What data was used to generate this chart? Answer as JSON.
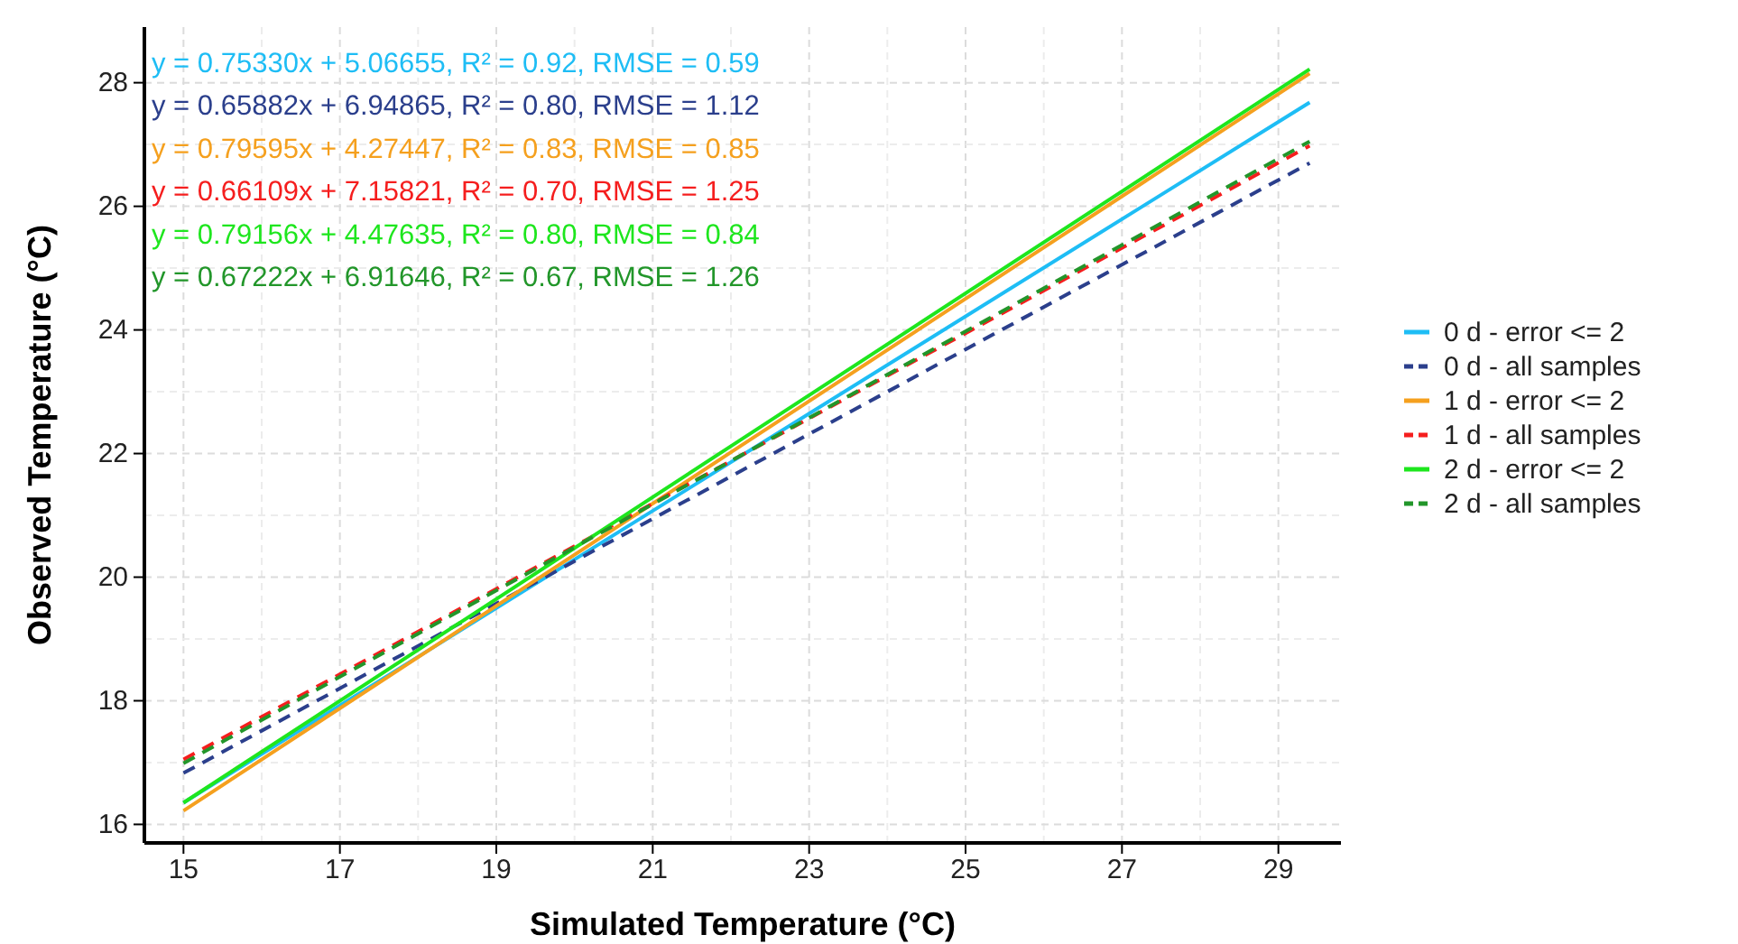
{
  "chart_data": {
    "type": "line",
    "xlabel": "Simulated Temperature (°C)",
    "ylabel": "Observed Temperature  (°C)",
    "xlim": [
      14.5,
      29.8
    ],
    "xticks": [
      15,
      17,
      19,
      21,
      23,
      25,
      27,
      29
    ],
    "ylim": [
      15.7,
      28.9
    ],
    "yticks": [
      16,
      18,
      20,
      22,
      24,
      26,
      28
    ],
    "grid": true,
    "legend": "right",
    "annotations": [
      "y = 0.75330x + 5.06655, R² = 0.92, RMSE = 0.59",
      "y = 0.65882x + 6.94865, R² = 0.80, RMSE = 1.12",
      "y = 0.79595x + 4.27447, R² = 0.83, RMSE = 0.85",
      "y = 0.66109x + 7.15821, R² = 0.70, RMSE = 1.25",
      "y = 0.79156x + 4.47635, R² = 0.80, RMSE = 0.84",
      "y = 0.67222x + 6.91646, R² = 0.67, RMSE = 1.26"
    ],
    "series": [
      {
        "name": "0 d - error <= 2",
        "color": "#1ebdf5",
        "line_style": "solid",
        "x": [
          15,
          22,
          29.4
        ],
        "values": [
          16.35,
          21.86,
          27.68
        ]
      },
      {
        "name": "0 d - all samples",
        "color": "#2b3f8c",
        "line_style": "dashed",
        "x": [
          15,
          22,
          29.4
        ],
        "values": [
          16.83,
          21.63,
          26.7
        ]
      },
      {
        "name": "1 d - error <= 2",
        "color": "#f5a01e",
        "line_style": "solid",
        "x": [
          15,
          22,
          29.4
        ],
        "values": [
          16.22,
          22.02,
          28.15
        ]
      },
      {
        "name": "1 d - all samples",
        "color": "#f51e1e",
        "line_style": "dashed",
        "x": [
          15,
          22,
          29.4
        ],
        "values": [
          17.05,
          21.88,
          26.98
        ]
      },
      {
        "name": "2 d - error <= 2",
        "color": "#1ee61e",
        "line_style": "solid",
        "x": [
          15,
          22,
          29.4
        ],
        "values": [
          16.35,
          22.12,
          28.22
        ]
      },
      {
        "name": "2 d - all samples",
        "color": "#22962a",
        "line_style": "dashed",
        "x": [
          15,
          22,
          29.4
        ],
        "values": [
          16.99,
          21.88,
          27.05
        ]
      }
    ]
  }
}
